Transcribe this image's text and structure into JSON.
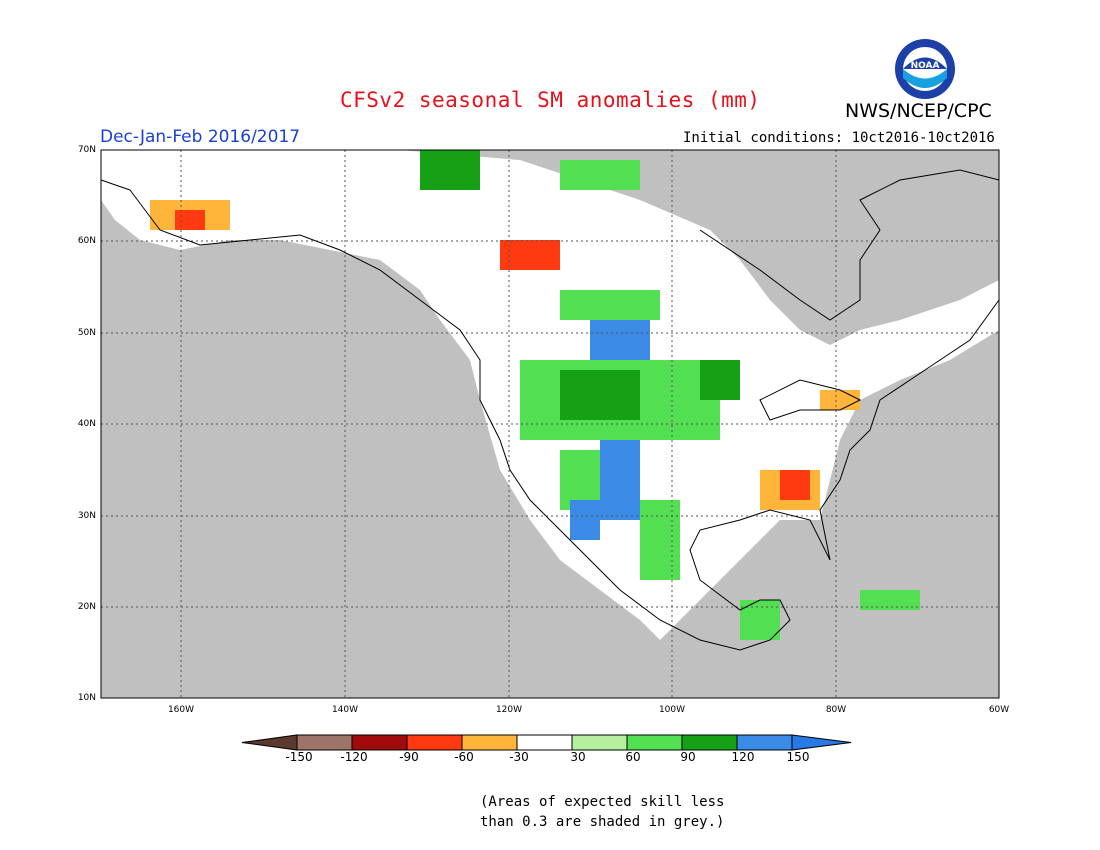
{
  "title": "CFSv2 seasonal SM anomalies (mm)",
  "agency": "NWS/NCEP/CPC",
  "logo_text": "NOAA",
  "season": "Dec-Jan-Feb 2016/2017",
  "initial_conditions": "Initial conditions: 10ct2016-10ct2016",
  "lat_labels": [
    "70N",
    "60N",
    "50N",
    "40N",
    "30N",
    "20N",
    "10N"
  ],
  "lon_labels": [
    "160W",
    "140W",
    "120W",
    "100W",
    "80W",
    "60W"
  ],
  "colorbar": {
    "labels": [
      "-150",
      "-120",
      "-90",
      "-60",
      "-30",
      "30",
      "60",
      "90",
      "120",
      "150"
    ],
    "colors": [
      "#5a3a2e",
      "#9c7468",
      "#a00a0a",
      "#ff3a10",
      "#ffb43a",
      "#ffffff",
      "#b4f0a0",
      "#52e052",
      "#16a016",
      "#3a8ae6",
      "#2878e6"
    ]
  },
  "note_lines": [
    "(Areas of expected skill less",
    "than 0.3 are shaded in grey.)"
  ]
}
